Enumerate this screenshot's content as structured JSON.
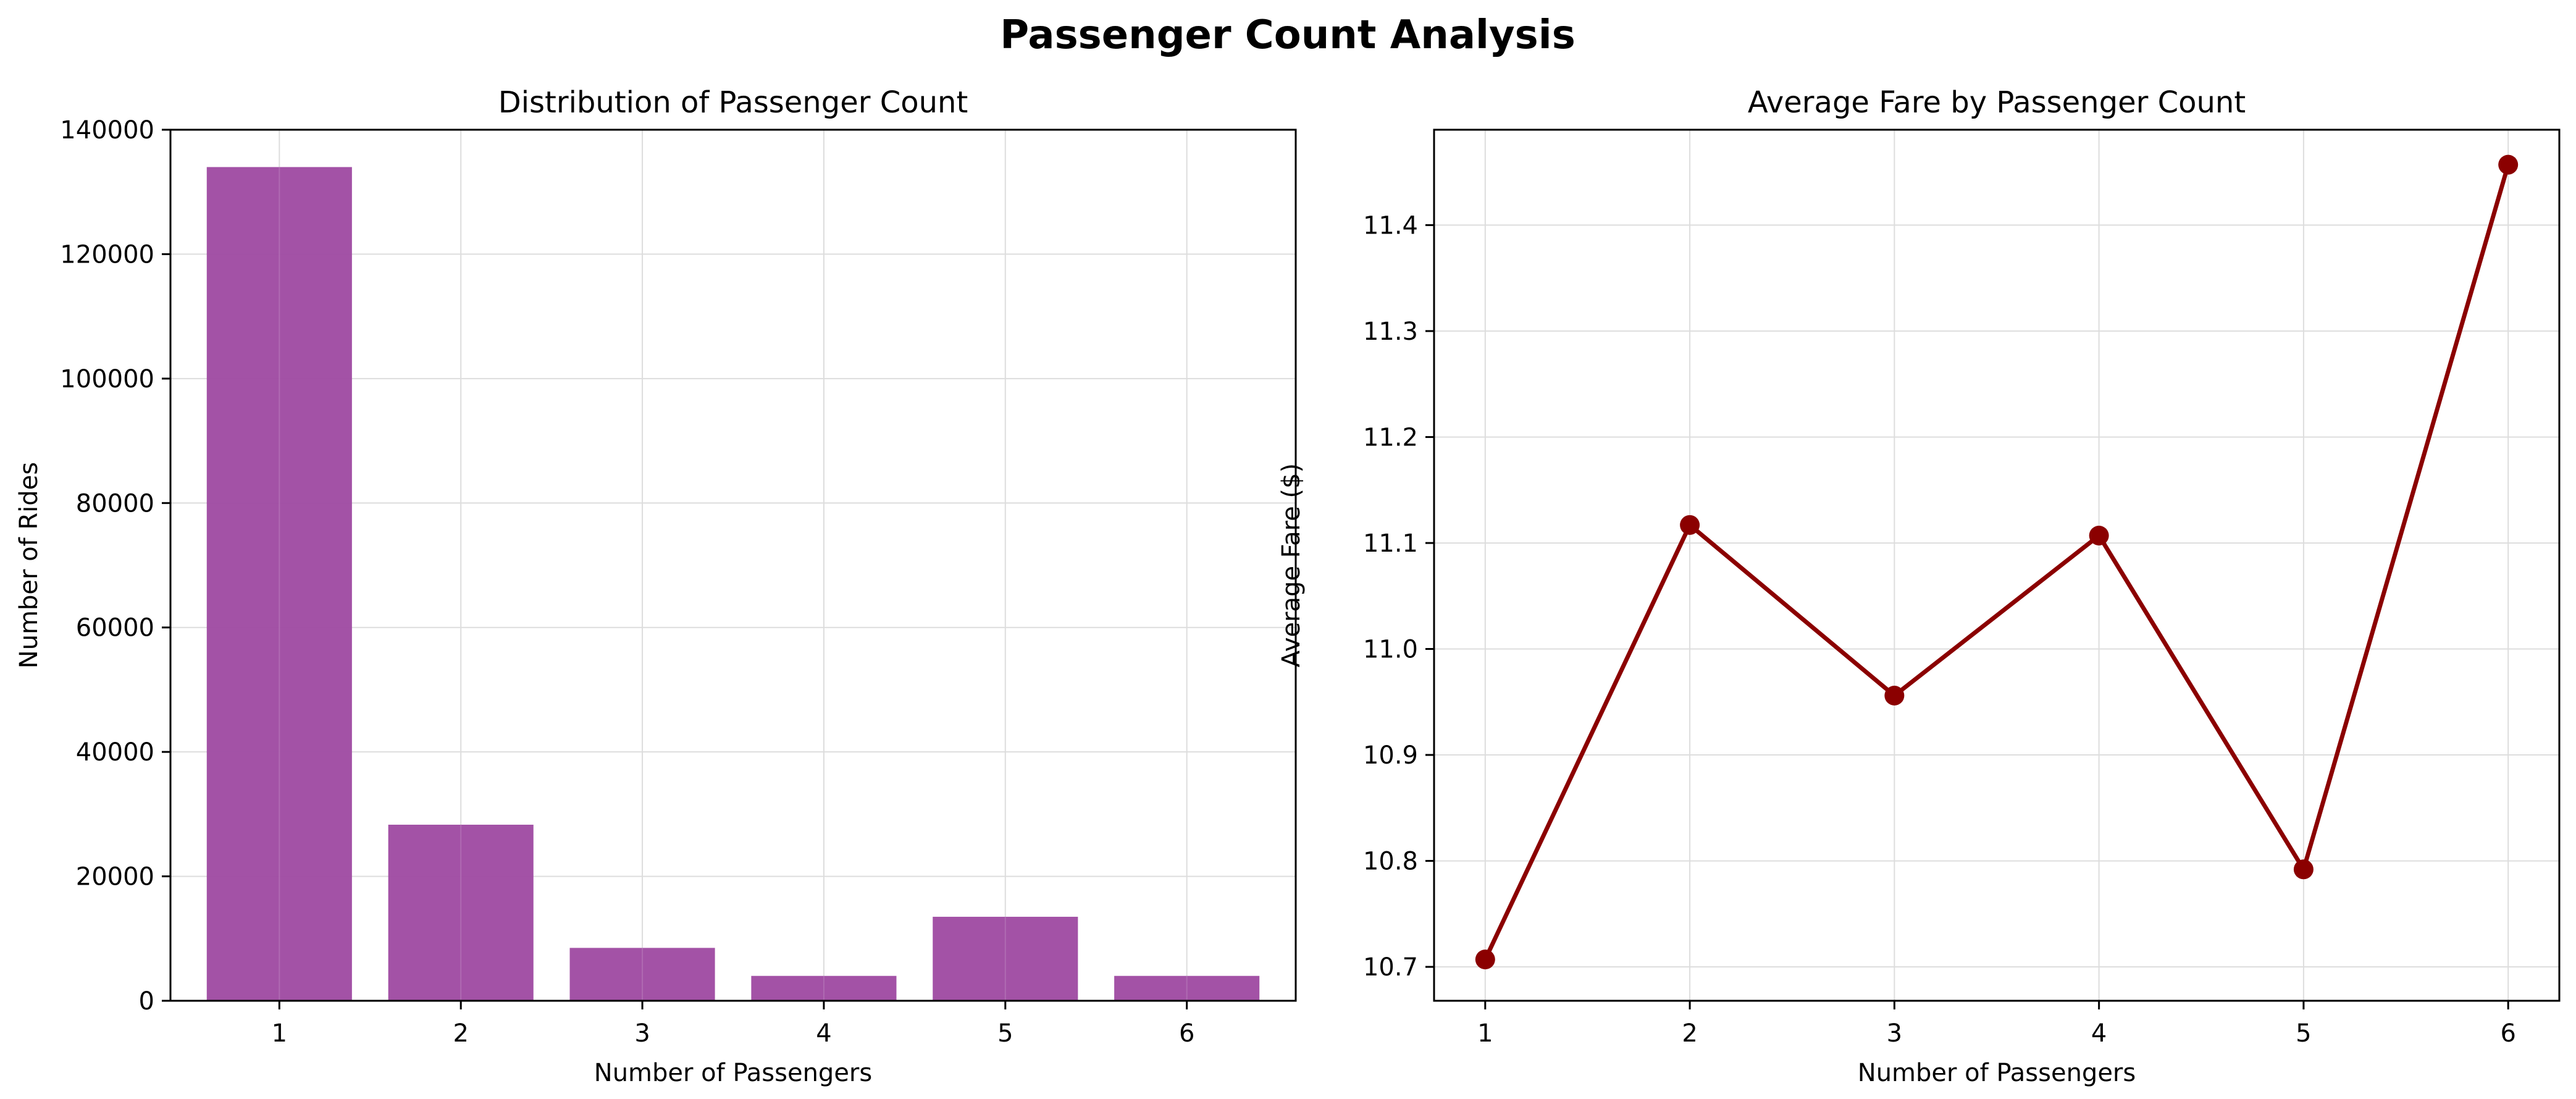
{
  "figure": {
    "title": "Passenger Count Analysis"
  },
  "chart_data": [
    {
      "type": "bar",
      "title": "Distribution of Passenger Count",
      "xlabel": "Number of Passengers",
      "ylabel": "Number of Rides",
      "categories": [
        "1",
        "2",
        "3",
        "4",
        "5",
        "6"
      ],
      "values": [
        134000,
        28300,
        8500,
        4000,
        13500,
        4000
      ],
      "ylim": [
        0,
        140000
      ],
      "yticks": [
        0,
        20000,
        40000,
        60000,
        80000,
        100000,
        120000,
        140000
      ],
      "ytick_labels": [
        "0",
        "20000",
        "40000",
        "60000",
        "80000",
        "100000",
        "120000",
        "140000"
      ],
      "grid": true,
      "color": "#a04ca3"
    },
    {
      "type": "line",
      "title": "Average Fare by Passenger Count",
      "xlabel": "Number of Passengers",
      "ylabel": "Average Fare ($)",
      "x": [
        1,
        2,
        3,
        4,
        5,
        6
      ],
      "values": [
        10.707,
        11.117,
        10.956,
        11.107,
        10.792,
        11.457
      ],
      "xtick_labels": [
        "1",
        "2",
        "3",
        "4",
        "5",
        "6"
      ],
      "ylim": [
        10.668,
        11.49
      ],
      "yticks": [
        10.7,
        10.8,
        10.9,
        11.0,
        11.1,
        11.2,
        11.3,
        11.4
      ],
      "ytick_labels": [
        "10.7",
        "10.8",
        "10.9",
        "11.0",
        "11.1",
        "11.2",
        "11.3",
        "11.4"
      ],
      "grid": true,
      "color": "#8b0000"
    }
  ]
}
